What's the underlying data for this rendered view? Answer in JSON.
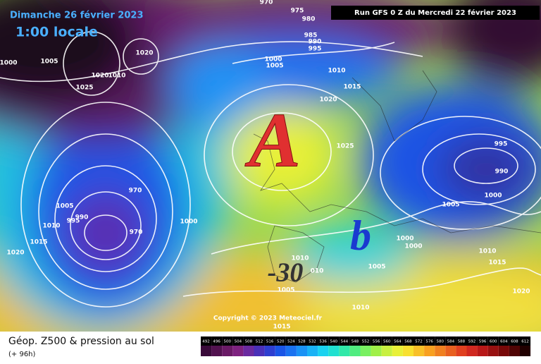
{
  "header": {
    "date": "Dimanche 26 février 2023",
    "time": "1:00 locale",
    "run": "Run GFS 0 Z du Mercredi 22 février 2023"
  },
  "map": {
    "pressure_labels": [
      "970",
      "975",
      "980",
      "985",
      "990",
      "995",
      "1000",
      "1005",
      "1010",
      "1015",
      "1020",
      "1025",
      "1000",
      "1005",
      "1020",
      "1020",
      "1010",
      "1025",
      "970",
      "1005",
      "1010",
      "995",
      "990",
      "1015",
      "1020",
      "970",
      "1000",
      "995",
      "990",
      "1000",
      "1005",
      "1000",
      "1000",
      "1005",
      "1005",
      "1010",
      "010",
      "1010",
      "1015",
      "1015",
      "1020",
      "1010"
    ],
    "high_symbol": "A",
    "low_symbol": "b",
    "temperature": "-30",
    "copyright": "Copyright © 2023 Meteociel.fr"
  },
  "footer": {
    "title": "Géop. Z500 & pression au sol",
    "lead": "(+ 96h)"
  },
  "legend": {
    "ticks": [
      492,
      496,
      500,
      504,
      508,
      512,
      516,
      520,
      524,
      528,
      532,
      536,
      540,
      544,
      548,
      552,
      556,
      560,
      564,
      568,
      572,
      576,
      580,
      584,
      588,
      592,
      596,
      600,
      604,
      608,
      612
    ],
    "colors": [
      "#3a0a3a",
      "#52124f",
      "#6a1a66",
      "#7e2280",
      "#6b2aa0",
      "#4a30b8",
      "#2e3ed0",
      "#1a55e6",
      "#1a72f0",
      "#1a92f5",
      "#1ab2f5",
      "#1ad2f0",
      "#20e0d0",
      "#30e8a8",
      "#50ec80",
      "#78f060",
      "#a0f048",
      "#c8f040",
      "#e8f038",
      "#f8e030",
      "#f8c028",
      "#f8a020",
      "#f08020",
      "#e86020",
      "#e04020",
      "#d02820",
      "#b81818",
      "#981010",
      "#780808",
      "#500404",
      "#200000"
    ]
  }
}
